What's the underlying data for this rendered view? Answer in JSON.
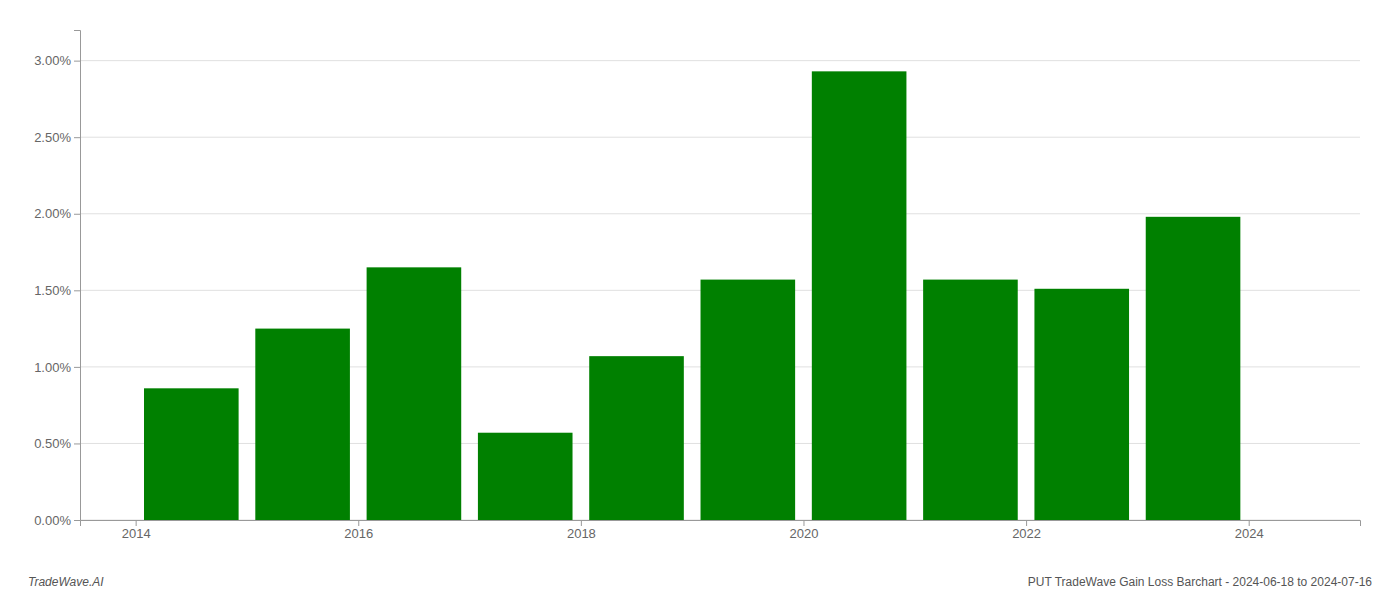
{
  "chart_data": {
    "type": "bar",
    "x": [
      2014,
      2015,
      2016,
      2017,
      2018,
      2019,
      2020,
      2021,
      2022,
      2023
    ],
    "values": [
      0.0086,
      0.0125,
      0.0165,
      0.0057,
      0.0107,
      0.0157,
      0.0293,
      0.0157,
      0.0151,
      0.0198
    ],
    "color": "#008000",
    "xlim": [
      2013.0,
      2024.5
    ],
    "xticks": [
      {
        "value": 2013.5,
        "label": "2014"
      },
      {
        "value": 2015.5,
        "label": "2016"
      },
      {
        "value": 2017.5,
        "label": "2018"
      },
      {
        "value": 2019.5,
        "label": "2020"
      },
      {
        "value": 2021.5,
        "label": "2022"
      },
      {
        "value": 2023.5,
        "label": "2024"
      }
    ],
    "ylim": [
      0,
      0.032
    ],
    "yticks": [
      {
        "value": 0.0,
        "label": "0.00%"
      },
      {
        "value": 0.005,
        "label": "0.50%"
      },
      {
        "value": 0.01,
        "label": "1.00%"
      },
      {
        "value": 0.015,
        "label": "1.50%"
      },
      {
        "value": 0.02,
        "label": "2.00%"
      },
      {
        "value": 0.025,
        "label": "2.50%"
      },
      {
        "value": 0.03,
        "label": "3.00%"
      }
    ],
    "grid": true,
    "annotations": [
      "TradeWave.AI",
      "PUT TradeWave Gain Loss Barchart - 2024-06-18 to 2024-07-16"
    ]
  }
}
